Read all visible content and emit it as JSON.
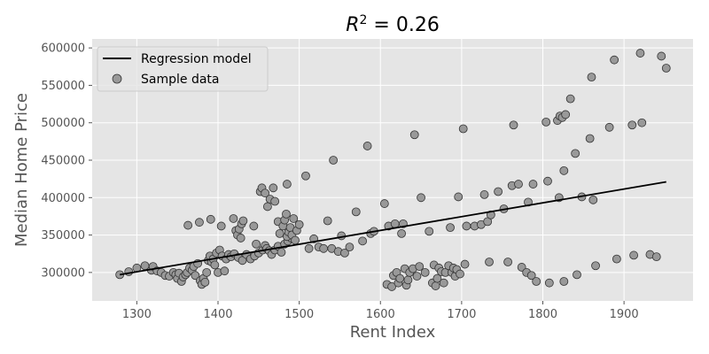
{
  "chart_data": {
    "type": "scatter",
    "title": "R² = 0.26",
    "xlabel": "Rent Index",
    "ylabel": "Median Home Price",
    "xlim": [
      1245,
      1985
    ],
    "ylim": [
      262000,
      612000
    ],
    "x_ticks": [
      1300,
      1400,
      1500,
      1600,
      1700,
      1800,
      1900
    ],
    "y_ticks": [
      300000,
      350000,
      400000,
      450000,
      500000,
      550000,
      600000
    ],
    "grid": true,
    "legend": {
      "placement": "top-left",
      "entries": [
        "Regression model",
        "Sample data"
      ]
    },
    "colors": {
      "background": "#e5e5e5",
      "grid": "#ffffff",
      "points": "#999999",
      "point_edge": "#333333",
      "line": "#000000"
    },
    "series": [
      {
        "name": "Sample data",
        "kind": "scatter",
        "points": [
          [
            1279,
            297000
          ],
          [
            1290,
            301000
          ],
          [
            1300,
            306000
          ],
          [
            1310,
            309000
          ],
          [
            1318,
            303000
          ],
          [
            1320,
            308000
          ],
          [
            1325,
            302000
          ],
          [
            1330,
            300000
          ],
          [
            1335,
            296000
          ],
          [
            1340,
            295000
          ],
          [
            1345,
            300000
          ],
          [
            1348,
            297000
          ],
          [
            1350,
            292000
          ],
          [
            1352,
            299000
          ],
          [
            1355,
            288000
          ],
          [
            1357,
            294000
          ],
          [
            1360,
            297000
          ],
          [
            1362,
            300000
          ],
          [
            1365,
            306000
          ],
          [
            1368,
            303000
          ],
          [
            1370,
            308000
          ],
          [
            1372,
            296000
          ],
          [
            1375,
            312000
          ],
          [
            1378,
            289000
          ],
          [
            1380,
            284000
          ],
          [
            1382,
            292000
          ],
          [
            1384,
            287000
          ],
          [
            1386,
            300000
          ],
          [
            1388,
            316000
          ],
          [
            1390,
            322000
          ],
          [
            1392,
            314000
          ],
          [
            1394,
            318000
          ],
          [
            1396,
            310000
          ],
          [
            1398,
            326000
          ],
          [
            1400,
            300000
          ],
          [
            1402,
            330000
          ],
          [
            1405,
            322000
          ],
          [
            1408,
            302000
          ],
          [
            1410,
            318000
          ],
          [
            1413,
            324000
          ],
          [
            1416,
            321000
          ],
          [
            1420,
            325000
          ],
          [
            1425,
            320000
          ],
          [
            1430,
            316000
          ],
          [
            1435,
            324000
          ],
          [
            1440,
            318000
          ],
          [
            1445,
            322000
          ],
          [
            1450,
            326000
          ],
          [
            1455,
            330000
          ],
          [
            1458,
            336000
          ],
          [
            1460,
            332000
          ],
          [
            1463,
            329000
          ],
          [
            1466,
            324000
          ],
          [
            1470,
            330000
          ],
          [
            1474,
            335000
          ],
          [
            1478,
            327000
          ],
          [
            1482,
            338000
          ],
          [
            1486,
            342000
          ],
          [
            1490,
            346000
          ],
          [
            1363,
            363000
          ],
          [
            1377,
            367000
          ],
          [
            1391,
            371000
          ],
          [
            1404,
            362000
          ],
          [
            1419,
            372000
          ],
          [
            1422,
            356000
          ],
          [
            1424,
            350000
          ],
          [
            1426,
            358000
          ],
          [
            1428,
            346000
          ],
          [
            1429,
            365000
          ],
          [
            1431,
            369000
          ],
          [
            1444,
            362000
          ],
          [
            1447,
            338000
          ],
          [
            1452,
            408000
          ],
          [
            1454,
            413000
          ],
          [
            1458,
            406000
          ],
          [
            1461,
            388000
          ],
          [
            1464,
            398000
          ],
          [
            1468,
            413000
          ],
          [
            1470,
            395000
          ],
          [
            1474,
            368000
          ],
          [
            1476,
            352000
          ],
          [
            1480,
            362000
          ],
          [
            1482,
            370000
          ],
          [
            1484,
            378000
          ],
          [
            1485,
            348000
          ],
          [
            1487,
            354000
          ],
          [
            1489,
            360000
          ],
          [
            1491,
            350000
          ],
          [
            1493,
            372000
          ],
          [
            1495,
            343000
          ],
          [
            1497,
            356000
          ],
          [
            1500,
            364000
          ],
          [
            1485,
            418000
          ],
          [
            1508,
            429000
          ],
          [
            1512,
            332000
          ],
          [
            1518,
            345000
          ],
          [
            1524,
            334000
          ],
          [
            1530,
            332000
          ],
          [
            1535,
            369000
          ],
          [
            1540,
            332000
          ],
          [
            1542,
            450000
          ],
          [
            1548,
            328000
          ],
          [
            1552,
            349000
          ],
          [
            1556,
            326000
          ],
          [
            1562,
            334000
          ],
          [
            1570,
            381000
          ],
          [
            1578,
            342000
          ],
          [
            1584,
            469000
          ],
          [
            1588,
            352000
          ],
          [
            1592,
            355000
          ],
          [
            1605,
            392000
          ],
          [
            1608,
            284000
          ],
          [
            1610,
            362000
          ],
          [
            1614,
            281000
          ],
          [
            1616,
            296000
          ],
          [
            1618,
            365000
          ],
          [
            1620,
            300000
          ],
          [
            1622,
            286000
          ],
          [
            1624,
            292000
          ],
          [
            1626,
            352000
          ],
          [
            1628,
            365000
          ],
          [
            1630,
            305000
          ],
          [
            1632,
            283000
          ],
          [
            1634,
            290000
          ],
          [
            1636,
            300000
          ],
          [
            1640,
            305000
          ],
          [
            1642,
            484000
          ],
          [
            1645,
            295000
          ],
          [
            1648,
            308000
          ],
          [
            1650,
            400000
          ],
          [
            1655,
            300000
          ],
          [
            1660,
            355000
          ],
          [
            1664,
            286000
          ],
          [
            1666,
            310000
          ],
          [
            1668,
            282000
          ],
          [
            1670,
            292000
          ],
          [
            1672,
            306000
          ],
          [
            1675,
            301000
          ],
          [
            1678,
            286000
          ],
          [
            1680,
            300000
          ],
          [
            1684,
            309000
          ],
          [
            1686,
            360000
          ],
          [
            1688,
            300000
          ],
          [
            1690,
            306000
          ],
          [
            1692,
            295000
          ],
          [
            1694,
            304000
          ],
          [
            1696,
            401000
          ],
          [
            1698,
            298000
          ],
          [
            1702,
            492000
          ],
          [
            1704,
            311000
          ],
          [
            1706,
            362000
          ],
          [
            1716,
            362000
          ],
          [
            1724,
            364000
          ],
          [
            1728,
            404000
          ],
          [
            1732,
            368000
          ],
          [
            1734,
            314000
          ],
          [
            1736,
            377000
          ],
          [
            1745,
            408000
          ],
          [
            1752,
            385000
          ],
          [
            1757,
            314000
          ],
          [
            1762,
            416000
          ],
          [
            1764,
            497000
          ],
          [
            1770,
            418000
          ],
          [
            1774,
            307000
          ],
          [
            1780,
            300000
          ],
          [
            1782,
            394000
          ],
          [
            1786,
            296000
          ],
          [
            1788,
            418000
          ],
          [
            1792,
            288000
          ],
          [
            1804,
            501000
          ],
          [
            1806,
            422000
          ],
          [
            1808,
            286000
          ],
          [
            1818,
            503000
          ],
          [
            1820,
            400000
          ],
          [
            1821,
            509000
          ],
          [
            1824,
            507000
          ],
          [
            1826,
            436000
          ],
          [
            1826,
            288000
          ],
          [
            1828,
            511000
          ],
          [
            1834,
            532000
          ],
          [
            1840,
            459000
          ],
          [
            1842,
            297000
          ],
          [
            1848,
            401000
          ],
          [
            1858,
            479000
          ],
          [
            1860,
            561000
          ],
          [
            1862,
            397000
          ],
          [
            1865,
            309000
          ],
          [
            1882,
            494000
          ],
          [
            1888,
            584000
          ],
          [
            1891,
            318000
          ],
          [
            1910,
            497000
          ],
          [
            1912,
            323000
          ],
          [
            1920,
            593000
          ],
          [
            1922,
            500000
          ],
          [
            1932,
            324000
          ],
          [
            1940,
            321000
          ],
          [
            1946,
            589000
          ],
          [
            1952,
            573000
          ]
        ]
      },
      {
        "name": "Regression model",
        "kind": "line",
        "points": [
          [
            1279,
            297000
          ],
          [
            1952,
            421000
          ]
        ]
      }
    ]
  }
}
